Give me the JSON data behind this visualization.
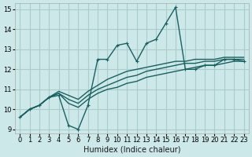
{
  "xlabel": "Humidex (Indice chaleur)",
  "ylabel": "",
  "xlim": [
    -0.5,
    23.5
  ],
  "ylim": [
    8.8,
    15.3
  ],
  "xticks": [
    0,
    1,
    2,
    3,
    4,
    5,
    6,
    7,
    8,
    9,
    10,
    11,
    12,
    13,
    14,
    15,
    16,
    17,
    18,
    19,
    20,
    21,
    22,
    23
  ],
  "yticks": [
    9,
    10,
    11,
    12,
    13,
    14,
    15
  ],
  "bg_color": "#cce8e8",
  "grid_color": "#aacccc",
  "line_color": "#1a6060",
  "main_x": [
    0,
    1,
    2,
    3,
    4,
    5,
    6,
    7,
    8,
    9,
    10,
    11,
    12,
    13,
    14,
    15,
    16,
    17,
    18,
    19,
    20,
    21,
    22,
    23
  ],
  "main_y": [
    9.6,
    10.0,
    10.2,
    10.6,
    10.7,
    9.2,
    9.0,
    10.2,
    12.5,
    12.5,
    13.2,
    13.3,
    12.4,
    13.3,
    13.5,
    14.3,
    15.1,
    12.0,
    12.0,
    12.2,
    12.2,
    12.5,
    12.5,
    12.4
  ],
  "low_y": [
    9.6,
    10.0,
    10.2,
    10.6,
    10.8,
    10.3,
    10.1,
    10.5,
    10.8,
    11.0,
    11.1,
    11.3,
    11.4,
    11.6,
    11.7,
    11.8,
    11.9,
    12.0,
    12.1,
    12.2,
    12.2,
    12.3,
    12.4,
    12.4
  ],
  "mid_y": [
    9.6,
    10.0,
    10.2,
    10.6,
    10.8,
    10.5,
    10.3,
    10.7,
    11.0,
    11.2,
    11.4,
    11.6,
    11.7,
    11.9,
    12.0,
    12.1,
    12.2,
    12.3,
    12.3,
    12.4,
    12.4,
    12.5,
    12.5,
    12.5
  ],
  "high_y": [
    9.6,
    10.0,
    10.2,
    10.6,
    10.9,
    10.7,
    10.5,
    10.9,
    11.2,
    11.5,
    11.7,
    11.9,
    12.0,
    12.1,
    12.2,
    12.3,
    12.4,
    12.4,
    12.5,
    12.5,
    12.5,
    12.6,
    12.6,
    12.6
  ]
}
